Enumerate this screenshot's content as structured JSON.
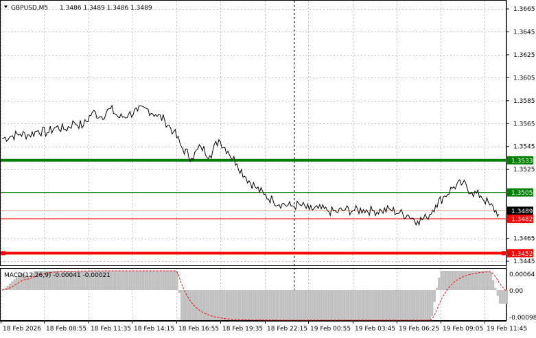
{
  "window": {
    "title": "GBPUSD,M5",
    "ohlc": "1.3486 1.3489 1.3486 1.3489"
  },
  "indicator": {
    "label": "MACD(12,26,9) -0.00041 -0.00021",
    "axis_labels": [
      "0.00064",
      "0.00",
      "-0.00098"
    ]
  },
  "price_axis": {
    "ticks": [
      "1.3665",
      "1.3645",
      "1.3625",
      "1.3605",
      "1.3585",
      "1.3565",
      "1.3545",
      "1.3525",
      "1.3465",
      "1.3445"
    ]
  },
  "levels": [
    {
      "value": 1.3533,
      "label": "1.3533",
      "color": "#008000",
      "style": "thick"
    },
    {
      "value": 1.3505,
      "label": "1.3505",
      "color": "#008000",
      "style": "thin"
    },
    {
      "value": 1.3489,
      "label": "1.3489",
      "color": "#ff0000",
      "style": "current"
    },
    {
      "value": 1.3482,
      "label": "1.3482",
      "color": "#ff0000",
      "style": "thin"
    },
    {
      "value": 1.3452,
      "label": "1.3452",
      "color": "#ff0000",
      "style": "thick"
    }
  ],
  "time_axis": {
    "labels": [
      "18 Feb 2026",
      "18 Feb 08:55",
      "18 Feb 11:35",
      "18 Feb 14:15",
      "18 Feb 16:55",
      "18 Feb 19:35",
      "18 Feb 22:15",
      "19 Feb 00:55",
      "19 Feb 03:45",
      "19 Feb 06:25",
      "19 Feb 09:05",
      "19 Feb 11:45"
    ]
  },
  "colors": {
    "price_line": "#000000",
    "grid": "#c0c0c0",
    "macd_hist": "#c0c0c0",
    "macd_signal": "#ff0000",
    "support": "#ff0000",
    "resistance": "#008000"
  },
  "chart_data": {
    "type": "line",
    "series": [
      {
        "values": [
          1.3552,
          1.3554,
          1.3556,
          1.3555,
          1.3559,
          1.3557,
          1.3562,
          1.356,
          1.3566,
          1.3563,
          1.3575,
          1.3571,
          1.3578,
          1.357,
          1.3573,
          1.3576,
          1.3578,
          1.3573,
          1.3568,
          1.3558,
          1.3543,
          1.3535,
          1.3545,
          1.3537,
          1.3551,
          1.3541,
          1.353,
          1.3518,
          1.351,
          1.3503,
          1.3498,
          1.3495,
          1.3493,
          1.3494,
          1.349,
          1.3491,
          1.3489,
          1.3488,
          1.349,
          1.3489,
          1.349,
          1.3489,
          1.3489,
          1.349,
          1.3487,
          1.3485,
          1.348,
          1.3483,
          1.3494,
          1.3502,
          1.351,
          1.3513,
          1.3505,
          1.3502,
          1.3494,
          1.3486
        ]
      }
    ],
    "ylim": [
      1.344,
      1.367
    ]
  }
}
